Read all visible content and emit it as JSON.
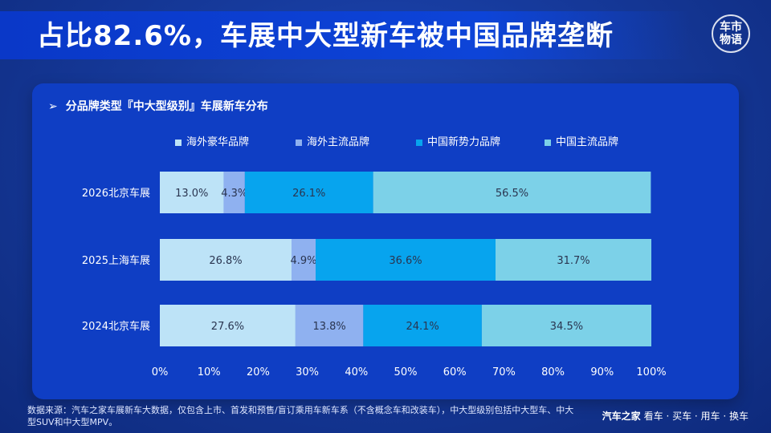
{
  "page": {
    "title": "占比82.6%，车展中大型新车被中国品牌垄断",
    "logo_text": "车市物语"
  },
  "chart_data": {
    "type": "bar",
    "orientation": "horizontal",
    "stacked": true,
    "title": "分品牌类型『中大型级别』车展新车分布",
    "categories": [
      "2026北京车展",
      "2025上海车展",
      "2024北京车展"
    ],
    "series": [
      {
        "name": "海外豪华品牌",
        "color": "#bde3f7",
        "values": [
          13.0,
          26.8,
          27.6
        ],
        "labels": [
          "13.0%",
          "26.8%",
          "27.6%"
        ]
      },
      {
        "name": "海外主流品牌",
        "color": "#8fb1f0",
        "values": [
          4.3,
          4.9,
          13.8
        ],
        "labels": [
          "4.3%",
          "4.9%",
          "13.8%"
        ]
      },
      {
        "name": "中国新势力品牌",
        "color": "#07a4ee",
        "values": [
          26.1,
          36.6,
          24.1
        ],
        "labels": [
          "26.1%",
          "36.6%",
          "24.1%"
        ]
      },
      {
        "name": "中国主流品牌",
        "color": "#7cd1e8",
        "values": [
          56.5,
          31.7,
          34.5
        ],
        "labels": [
          "56.5%",
          "31.7%",
          "34.5%"
        ]
      }
    ],
    "x_ticks": [
      "0%",
      "10%",
      "20%",
      "30%",
      "40%",
      "50%",
      "60%",
      "70%",
      "80%",
      "90%",
      "100%"
    ],
    "xlim": [
      0,
      100
    ],
    "legend_position": "top"
  },
  "footer": {
    "note": "数据来源：汽车之家车展新车大数据，仅包含上市、首发和预售/盲订乘用车新车系（不含概念车和改装车），中大型级别包括中大型车、中大型SUV和中大型MPV。",
    "brand_name": "汽车之家",
    "brand_slogan": "看车 · 买车 · 用车 · 换车"
  }
}
